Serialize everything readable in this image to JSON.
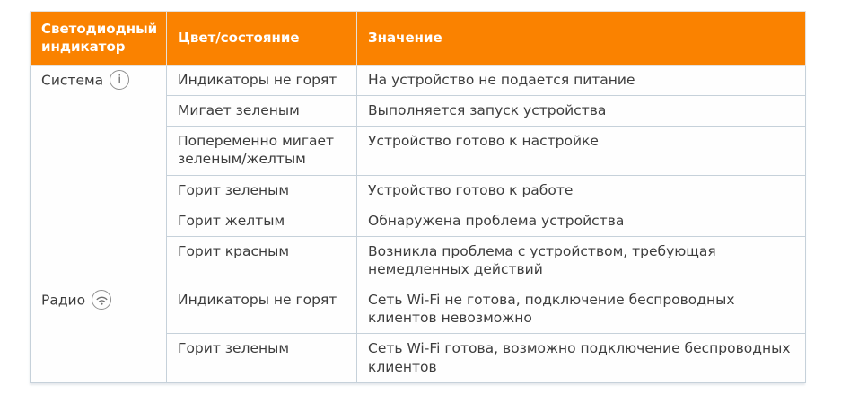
{
  "table": {
    "columns": [
      "Светодиодный индикатор",
      "Цвет/состояние",
      "Значение"
    ],
    "groups": [
      {
        "label": "Система",
        "icon": "info-icon",
        "rows": [
          {
            "state": "Индикаторы не горят",
            "meaning": "На устройство не подается питание"
          },
          {
            "state": "Мигает зеленым",
            "meaning": "Выполняется запуск устройства"
          },
          {
            "state": "Попеременно мигает зеленым/желтым",
            "meaning": "Устройство готово к настройке"
          },
          {
            "state": "Горит зеленым",
            "meaning": "Устройство готово к работе"
          },
          {
            "state": "Горит желтым",
            "meaning": "Обнаружена проблема устройства"
          },
          {
            "state": "Горит красным",
            "meaning": "Возникла проблема с устройством, требующая немедленных действий"
          }
        ]
      },
      {
        "label": "Радио",
        "icon": "wifi-icon",
        "rows": [
          {
            "state": "Индикаторы не горят",
            "meaning": "Сеть Wi-Fi не готова, подключение беспроводных клиентов невозможно"
          },
          {
            "state": "Горит зеленым",
            "meaning": "Сеть Wi-Fi готова, возможно подключение беспроводных клиентов"
          }
        ]
      }
    ]
  },
  "colors": {
    "header_bg": "#fa8200",
    "header_text": "#ffffff",
    "border": "#c6d1da",
    "body_text": "#3d3d3d",
    "icon_gray": "#8f8f8f"
  }
}
